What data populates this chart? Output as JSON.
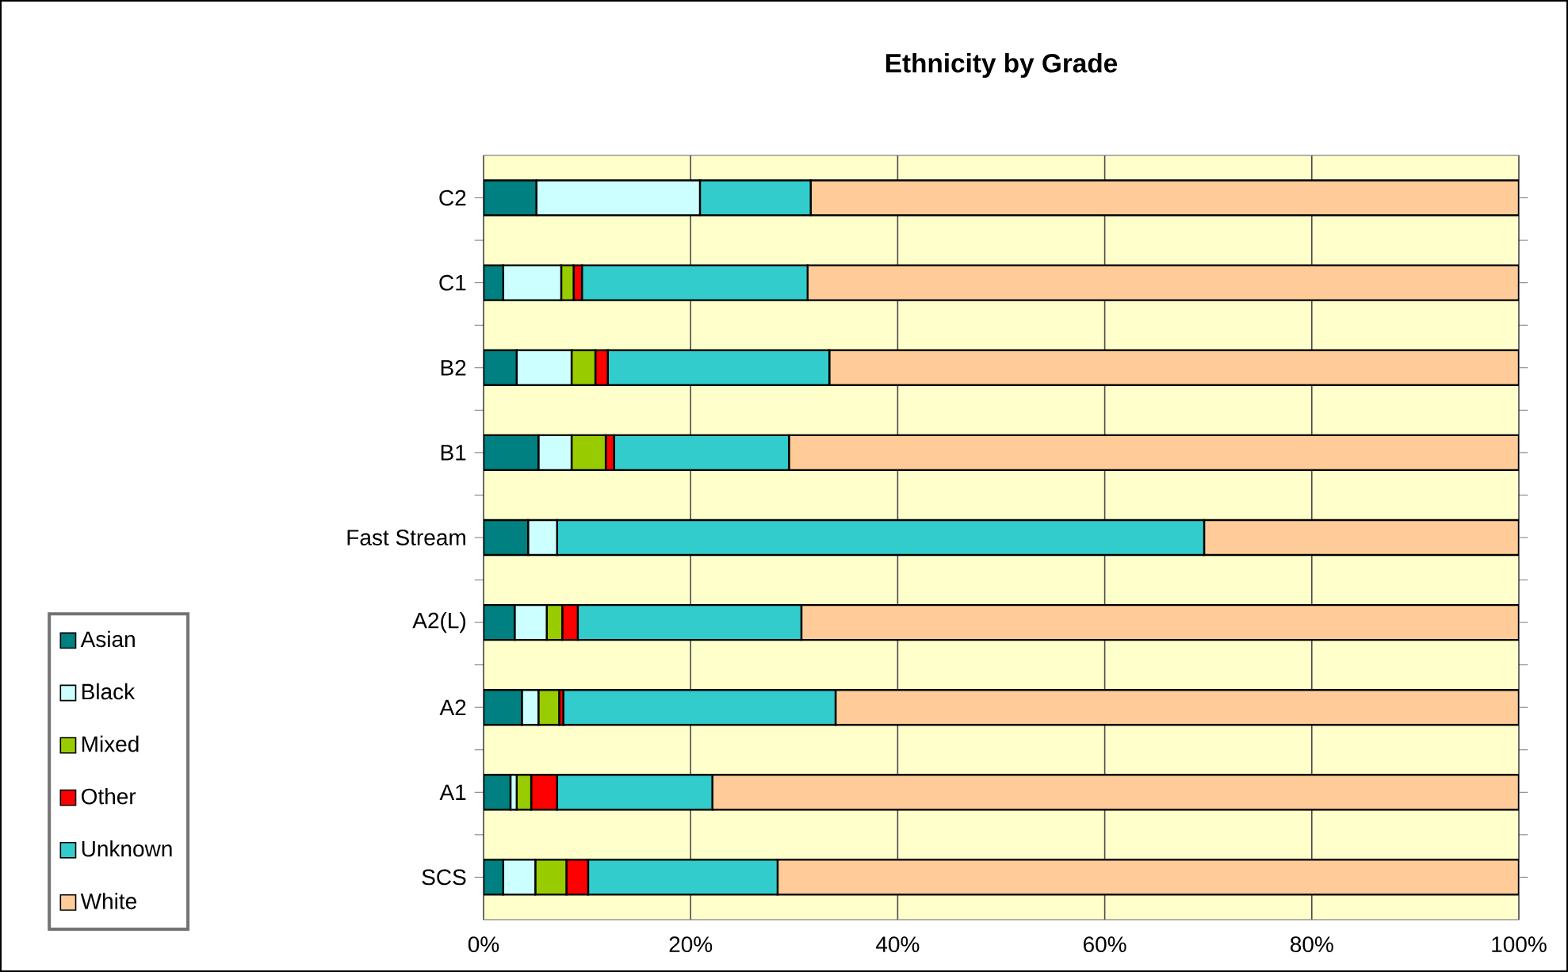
{
  "chart_data": {
    "type": "bar",
    "orientation": "horizontal",
    "stacked": true,
    "title": "Ethnicity by Grade",
    "categories": [
      "C2",
      "C1",
      "B2",
      "B1",
      "Fast Stream",
      "A2(L)",
      "A2",
      "A1",
      "SCS"
    ],
    "series": [
      {
        "name": "Asian",
        "color": "#008080",
        "values": [
          5.1,
          1.9,
          3.2,
          5.3,
          4.3,
          3.0,
          3.7,
          2.6,
          1.9
        ]
      },
      {
        "name": "Black",
        "color": "#ccffff",
        "values": [
          15.8,
          5.6,
          5.3,
          3.2,
          2.8,
          3.1,
          1.6,
          0.6,
          3.1
        ]
      },
      {
        "name": "Mixed",
        "color": "#99cc00",
        "values": [
          0,
          1.2,
          2.3,
          3.3,
          0,
          1.5,
          2.0,
          1.4,
          3.0
        ]
      },
      {
        "name": "Other",
        "color": "#ff0000",
        "values": [
          0,
          0.8,
          1.2,
          0.8,
          0,
          1.5,
          0.4,
          2.5,
          2.1
        ]
      },
      {
        "name": "Unknown",
        "color": "#33cccc",
        "values": [
          10.7,
          21.8,
          21.4,
          16.9,
          62.5,
          21.6,
          26.3,
          15.0,
          18.3
        ]
      },
      {
        "name": "White",
        "color": "#ffcc99",
        "values": [
          68.4,
          68.7,
          66.6,
          70.5,
          30.4,
          69.3,
          66.0,
          77.9,
          71.6
        ]
      }
    ],
    "xlim": [
      0,
      100
    ],
    "xticks": [
      {
        "value": 0,
        "label": "0%"
      },
      {
        "value": 20,
        "label": "20%"
      },
      {
        "value": 40,
        "label": "40%"
      },
      {
        "value": 60,
        "label": "60%"
      },
      {
        "value": 80,
        "label": "80%"
      },
      {
        "value": 100,
        "label": "100%"
      }
    ],
    "grid": "x",
    "legend": "bottom left"
  }
}
